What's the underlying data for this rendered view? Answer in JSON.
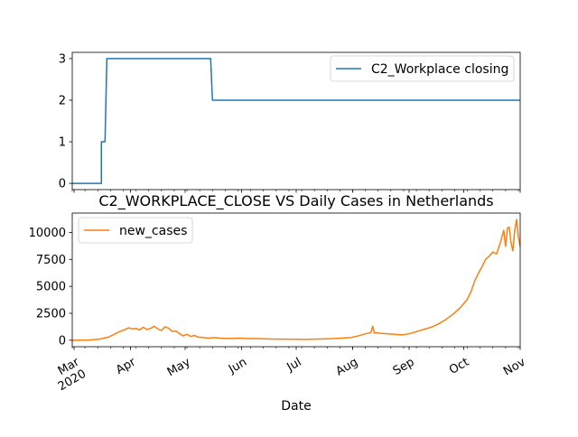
{
  "chart_data": [
    {
      "type": "line",
      "title": "",
      "xlabel": "",
      "ylabel": "",
      "ylim": [
        -0.15,
        3.15
      ],
      "yticks": [
        0,
        1,
        2,
        3
      ],
      "xlim": [
        "2020-02-29",
        "2020-11-01"
      ],
      "grid": false,
      "legend_position": "top-right",
      "series": [
        {
          "name": "C2_Workplace closing",
          "color": "#1f77b4",
          "x": [
            "2020-02-29",
            "2020-03-16",
            "2020-03-16",
            "2020-03-17",
            "2020-03-17",
            "2020-03-18",
            "2020-03-19",
            "2020-05-15",
            "2020-05-16",
            "2020-11-01"
          ],
          "y": [
            0,
            0,
            1,
            1,
            1,
            1,
            3,
            3,
            2,
            2
          ]
        }
      ]
    },
    {
      "type": "line",
      "title": "C2_WORKPLACE_CLOSE VS Daily Cases in Netherlands",
      "xlabel": "Date",
      "ylabel": "",
      "ylim": [
        -600,
        11800
      ],
      "yticks": [
        0,
        2500,
        5000,
        7500,
        10000
      ],
      "xlim": [
        "2020-02-29",
        "2020-11-01"
      ],
      "grid": false,
      "legend_position": "top-left",
      "x_ticks": [
        {
          "date": "2020-03-01",
          "label": "Mar",
          "sublabel": "2020"
        },
        {
          "date": "2020-04-01",
          "label": "Apr"
        },
        {
          "date": "2020-05-01",
          "label": "May"
        },
        {
          "date": "2020-06-01",
          "label": "Jun"
        },
        {
          "date": "2020-07-01",
          "label": "Jul"
        },
        {
          "date": "2020-08-01",
          "label": "Aug"
        },
        {
          "date": "2020-09-01",
          "label": "Sep"
        },
        {
          "date": "2020-10-01",
          "label": "Oct"
        },
        {
          "date": "2020-11-01",
          "label": "Nov"
        }
      ],
      "series": [
        {
          "name": "new_cases",
          "color": "#ff7f0e",
          "x": [
            "2020-02-29",
            "2020-03-05",
            "2020-03-10",
            "2020-03-15",
            "2020-03-20",
            "2020-03-23",
            "2020-03-26",
            "2020-03-29",
            "2020-03-31",
            "2020-04-02",
            "2020-04-04",
            "2020-04-06",
            "2020-04-08",
            "2020-04-10",
            "2020-04-12",
            "2020-04-14",
            "2020-04-16",
            "2020-04-18",
            "2020-04-20",
            "2020-04-22",
            "2020-04-24",
            "2020-04-26",
            "2020-04-28",
            "2020-04-30",
            "2020-05-02",
            "2020-05-04",
            "2020-05-06",
            "2020-05-08",
            "2020-05-11",
            "2020-05-14",
            "2020-05-17",
            "2020-05-20",
            "2020-05-25",
            "2020-05-30",
            "2020-06-05",
            "2020-06-10",
            "2020-06-15",
            "2020-06-20",
            "2020-06-25",
            "2020-07-01",
            "2020-07-06",
            "2020-07-11",
            "2020-07-16",
            "2020-07-21",
            "2020-07-26",
            "2020-07-31",
            "2020-08-04",
            "2020-08-08",
            "2020-08-11",
            "2020-08-12",
            "2020-08-13",
            "2020-08-14",
            "2020-08-16",
            "2020-08-20",
            "2020-08-24",
            "2020-08-28",
            "2020-09-01",
            "2020-09-05",
            "2020-09-09",
            "2020-09-13",
            "2020-09-17",
            "2020-09-21",
            "2020-09-25",
            "2020-09-29",
            "2020-10-03",
            "2020-10-05",
            "2020-10-07",
            "2020-10-09",
            "2020-10-11",
            "2020-10-13",
            "2020-10-15",
            "2020-10-17",
            "2020-10-19",
            "2020-10-21",
            "2020-10-23",
            "2020-10-24",
            "2020-10-25",
            "2020-10-26",
            "2020-10-27",
            "2020-10-28",
            "2020-10-29",
            "2020-10-30",
            "2020-10-31",
            "2020-11-01"
          ],
          "y": [
            0,
            10,
            30,
            100,
            300,
            550,
            800,
            1000,
            1150,
            1050,
            1100,
            950,
            1200,
            1000,
            1100,
            1300,
            1050,
            900,
            1250,
            1100,
            800,
            850,
            600,
            400,
            550,
            350,
            450,
            300,
            250,
            200,
            250,
            200,
            150,
            200,
            150,
            150,
            120,
            100,
            100,
            90,
            80,
            100,
            120,
            150,
            200,
            250,
            400,
            600,
            700,
            1300,
            650,
            700,
            650,
            600,
            550,
            500,
            600,
            800,
            1000,
            1200,
            1500,
            1900,
            2400,
            3000,
            3800,
            4500,
            5500,
            6200,
            6800,
            7500,
            7800,
            8200,
            8000,
            9000,
            10200,
            8700,
            10400,
            10500,
            9000,
            8300,
            10200,
            11200,
            9600,
            8700
          ]
        }
      ]
    }
  ]
}
